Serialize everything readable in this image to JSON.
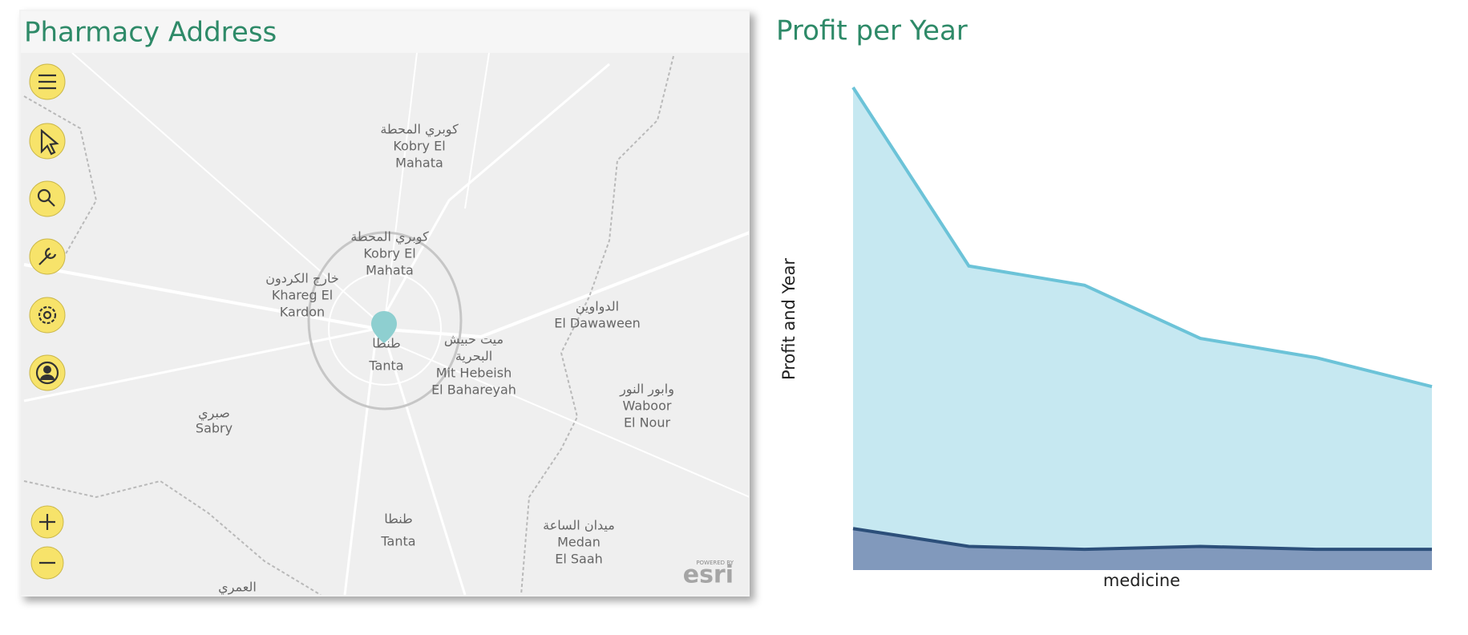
{
  "map": {
    "title": "Pharmacy Address",
    "labels": [
      {
        "lines": [
          "كوبري المحطة",
          "Kobry El",
          "Mahata"
        ]
      },
      {
        "lines": [
          "كوبري المحطة",
          "Kobry El",
          "Mahata"
        ]
      },
      {
        "lines": [
          "خارج الكردون",
          "Khareg El",
          "Kardon"
        ]
      },
      {
        "lines": [
          "طنطا",
          "Tanta"
        ]
      },
      {
        "lines": [
          "ميت حبيش",
          "البحرية",
          "Mit Hebeish",
          "El Bahareyah"
        ]
      },
      {
        "lines": [
          "الدواوين",
          "El Dawaween"
        ]
      },
      {
        "lines": [
          "وابور النور",
          "Waboor",
          "El Nour"
        ]
      },
      {
        "lines": [
          "صبري",
          "Sabry"
        ]
      },
      {
        "lines": [
          "طنطا",
          "Tanta"
        ]
      },
      {
        "lines": [
          "ميدان الساعة",
          "Medan",
          "El Saah"
        ]
      },
      {
        "lines": [
          "العمري"
        ]
      }
    ],
    "attribution": [
      "POWERED BY",
      "esri"
    ]
  },
  "chart_data": {
    "type": "area",
    "title": "Profit per Year",
    "y_label": "Profit and Year",
    "x_label": "medicine",
    "series": [
      {
        "color": "#6cc3d8",
        "fill": "#c6e8f1",
        "values": [
          100,
          63,
          59,
          48,
          44,
          38
        ]
      },
      {
        "color": "#2c4f7a",
        "fill": "#8199bc",
        "values": [
          8.6,
          4.9,
          4.3,
          4.9,
          4.3,
          4.3
        ]
      }
    ],
    "ylim": [
      0,
      100
    ]
  }
}
